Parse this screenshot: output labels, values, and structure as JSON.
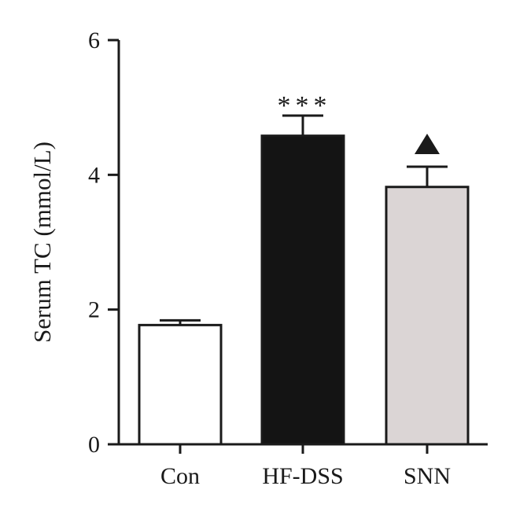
{
  "chart_data": {
    "type": "bar",
    "title": "",
    "xlabel": "",
    "ylabel": "Serum TC (mmol/L)",
    "ylim": [
      0,
      6
    ],
    "yticks": [
      0,
      2,
      4,
      6
    ],
    "categories": [
      "Con",
      "HF-DSS",
      "SNN"
    ],
    "values": [
      1.77,
      4.58,
      3.82
    ],
    "errors": [
      0.07,
      0.3,
      0.3
    ],
    "bar_colors": [
      "#ffffff",
      "#141414",
      "#dbd5d5"
    ],
    "annotations": [
      {
        "category": "HF-DSS",
        "text": "***"
      },
      {
        "category": "SNN",
        "text": "▲"
      }
    ],
    "grid": false,
    "legend": "none"
  }
}
